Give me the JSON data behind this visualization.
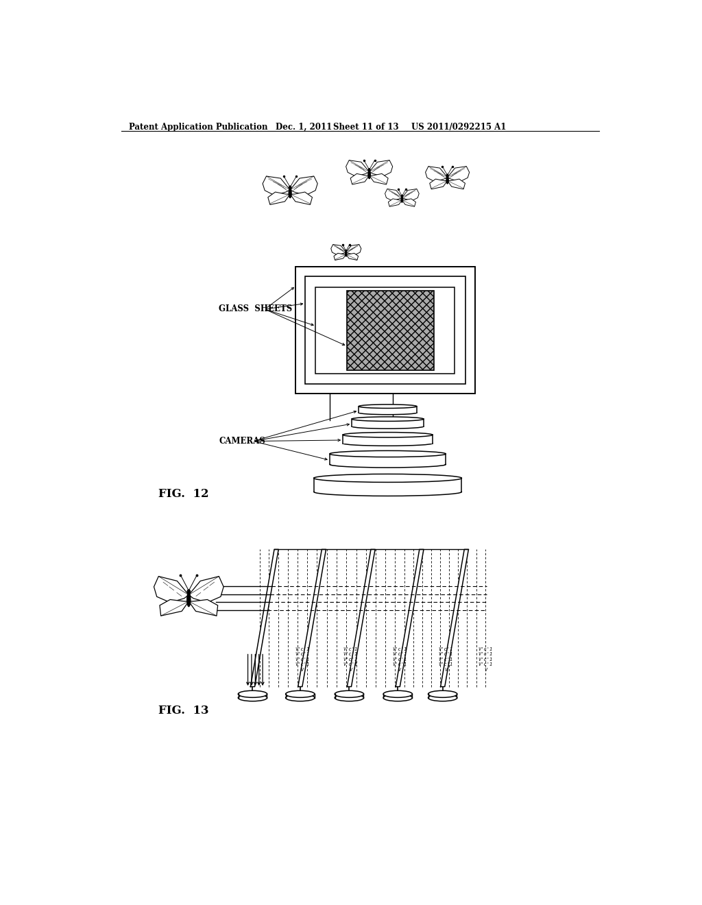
{
  "bg_color": "#ffffff",
  "line_color": "#000000",
  "header_text": "Patent Application Publication",
  "header_date": "Dec. 1, 2011",
  "header_sheet": "Sheet 11 of 13",
  "header_patent": "US 2011/0292215 A1",
  "fig12_label": "FIG.  12",
  "fig13_label": "FIG.  13",
  "glass_sheets_label": "GLASS  SHEETS",
  "cameras_label": "CAMERAS"
}
